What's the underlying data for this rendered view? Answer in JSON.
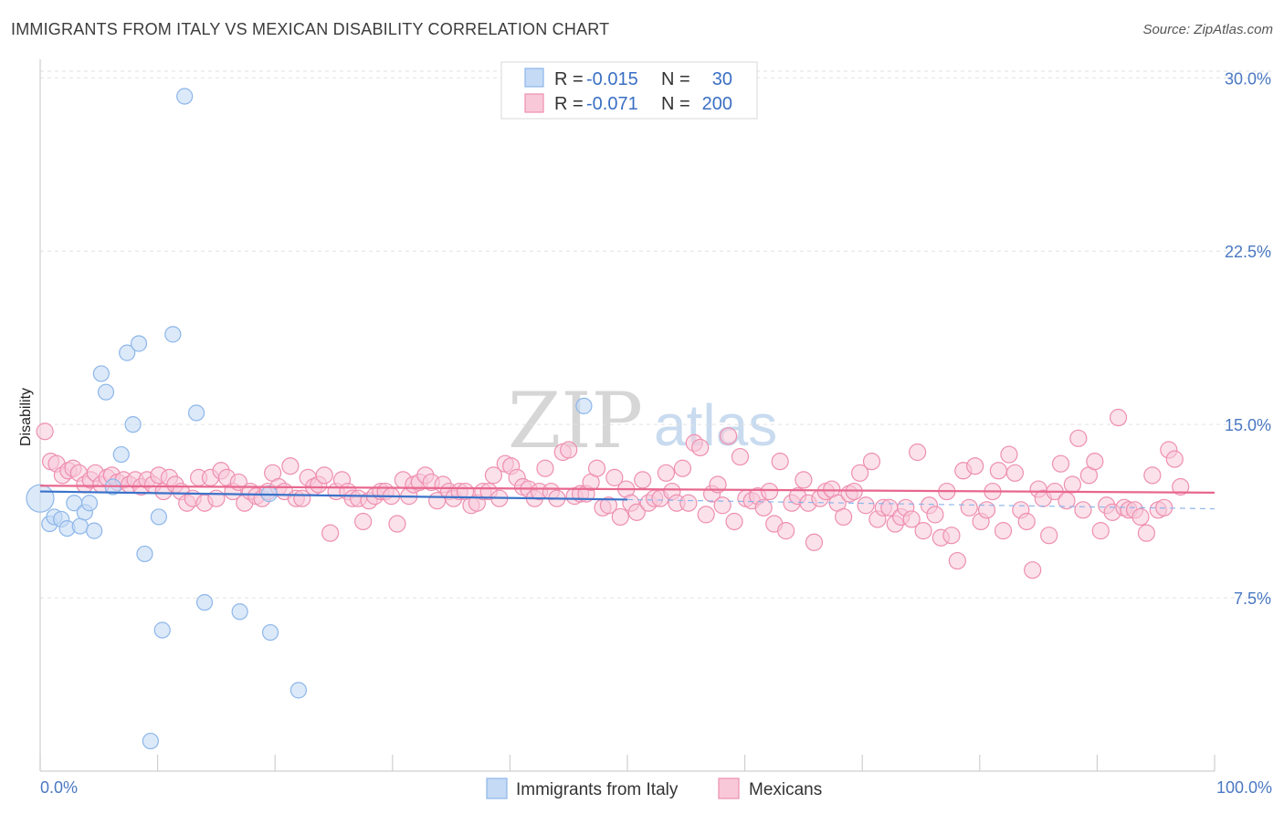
{
  "title": "IMMIGRANTS FROM ITALY VS MEXICAN DISABILITY CORRELATION CHART",
  "source": "Source: ZipAtlas.com",
  "watermark": {
    "zip": "ZIP",
    "atlas": "atlas"
  },
  "colors": {
    "blue": "#8db6ea",
    "blue_fill": "#c5daf5",
    "blue_line": "#3b73c9",
    "pink": "#ee8fb0",
    "pink_fill": "#f8c8d8",
    "pink_line": "#e8678f",
    "tick": "#4a78c2"
  },
  "stats": [
    {
      "r_label": "R =",
      "r_value": "-0.015",
      "n_label": "N =",
      "n_value": "30"
    },
    {
      "r_label": "R =",
      "r_value": "-0.071",
      "n_label": "N =",
      "n_value": "200"
    }
  ],
  "chart_data": {
    "type": "scatter",
    "ylabel": "Disability",
    "xlabel": "",
    "xlim": [
      0,
      100
    ],
    "ylim": [
      0,
      30.8
    ],
    "y_ticks": [
      7.5,
      15.0,
      22.5,
      30.0
    ],
    "y_tick_labels": [
      "7.5%",
      "15.0%",
      "22.5%",
      "30.0%"
    ],
    "x_tick_labels": [
      "0.0%",
      "100.0%"
    ],
    "legend_position": "bottom-center",
    "grid": true,
    "series": [
      {
        "name": "Immigrants from Italy",
        "points": [
          [
            0,
            11.8
          ],
          [
            0.8,
            10.7
          ],
          [
            1.2,
            11.0
          ],
          [
            1.8,
            10.9
          ],
          [
            2.3,
            10.5
          ],
          [
            2.9,
            11.6
          ],
          [
            3.4,
            10.6
          ],
          [
            3.8,
            11.2
          ],
          [
            4.2,
            11.6
          ],
          [
            4.6,
            10.4
          ],
          [
            5.2,
            17.2
          ],
          [
            5.6,
            16.4
          ],
          [
            6.2,
            12.3
          ],
          [
            6.9,
            13.7
          ],
          [
            7.4,
            18.1
          ],
          [
            7.9,
            15.0
          ],
          [
            8.4,
            18.5
          ],
          [
            8.9,
            9.4
          ],
          [
            9.4,
            1.3
          ],
          [
            10.1,
            11.0
          ],
          [
            10.4,
            6.1
          ],
          [
            11.3,
            18.9
          ],
          [
            12.3,
            29.2
          ],
          [
            13.3,
            15.5
          ],
          [
            14.0,
            7.3
          ],
          [
            17.0,
            6.9
          ],
          [
            19.5,
            12.0
          ],
          [
            19.6,
            6.0
          ],
          [
            22.0,
            3.5
          ],
          [
            46.3,
            15.8
          ]
        ]
      },
      {
        "name": "Mexicans",
        "points": [
          [
            0.4,
            14.7
          ],
          [
            0.9,
            13.4
          ],
          [
            1.4,
            13.3
          ],
          [
            1.9,
            12.8
          ],
          [
            2.4,
            13.0
          ],
          [
            2.8,
            13.1
          ],
          [
            3.3,
            12.9
          ],
          [
            3.8,
            12.4
          ],
          [
            4.3,
            12.6
          ],
          [
            4.7,
            12.9
          ],
          [
            5.2,
            12.4
          ],
          [
            5.7,
            12.7
          ],
          [
            6.1,
            12.8
          ],
          [
            6.6,
            12.5
          ],
          [
            7.1,
            12.6
          ],
          [
            7.6,
            12.4
          ],
          [
            8.1,
            12.6
          ],
          [
            8.6,
            12.3
          ],
          [
            9.1,
            12.6
          ],
          [
            9.6,
            12.4
          ],
          [
            10.1,
            12.8
          ],
          [
            10.5,
            12.1
          ],
          [
            11.0,
            12.7
          ],
          [
            11.5,
            12.4
          ],
          [
            12.0,
            12.1
          ],
          [
            12.5,
            11.6
          ],
          [
            13.0,
            11.8
          ],
          [
            13.5,
            12.7
          ],
          [
            14.0,
            11.6
          ],
          [
            14.5,
            12.7
          ],
          [
            15.0,
            11.8
          ],
          [
            15.4,
            13.0
          ],
          [
            15.9,
            12.7
          ],
          [
            16.4,
            12.1
          ],
          [
            16.9,
            12.5
          ],
          [
            17.4,
            11.6
          ],
          [
            17.9,
            12.1
          ],
          [
            18.4,
            11.9
          ],
          [
            18.9,
            11.8
          ],
          [
            19.4,
            12.1
          ],
          [
            19.8,
            12.9
          ],
          [
            20.3,
            12.3
          ],
          [
            20.8,
            12.1
          ],
          [
            21.3,
            13.2
          ],
          [
            21.8,
            11.8
          ],
          [
            22.3,
            11.8
          ],
          [
            22.8,
            12.7
          ],
          [
            23.3,
            12.3
          ],
          [
            23.7,
            12.4
          ],
          [
            24.2,
            12.8
          ],
          [
            24.7,
            10.3
          ],
          [
            25.2,
            12.1
          ],
          [
            25.7,
            12.6
          ],
          [
            26.2,
            12.1
          ],
          [
            26.6,
            11.8
          ],
          [
            27.1,
            11.8
          ],
          [
            27.5,
            10.8
          ],
          [
            28.0,
            11.7
          ],
          [
            28.5,
            11.9
          ],
          [
            29.0,
            12.1
          ],
          [
            29.4,
            12.1
          ],
          [
            29.9,
            11.9
          ],
          [
            30.4,
            10.7
          ],
          [
            30.9,
            12.6
          ],
          [
            31.4,
            11.9
          ],
          [
            31.8,
            12.4
          ],
          [
            32.3,
            12.5
          ],
          [
            32.8,
            12.8
          ],
          [
            33.3,
            12.5
          ],
          [
            33.8,
            11.7
          ],
          [
            34.3,
            12.4
          ],
          [
            34.8,
            12.1
          ],
          [
            35.2,
            11.8
          ],
          [
            35.7,
            12.1
          ],
          [
            36.2,
            12.1
          ],
          [
            36.7,
            11.5
          ],
          [
            37.2,
            11.6
          ],
          [
            37.7,
            12.1
          ],
          [
            38.2,
            12.1
          ],
          [
            38.6,
            12.8
          ],
          [
            39.1,
            11.8
          ],
          [
            39.6,
            13.3
          ],
          [
            40.1,
            13.2
          ],
          [
            40.6,
            12.7
          ],
          [
            41.1,
            12.3
          ],
          [
            41.6,
            12.2
          ],
          [
            42.1,
            11.8
          ],
          [
            42.5,
            12.1
          ],
          [
            43.0,
            13.1
          ],
          [
            43.5,
            12.1
          ],
          [
            44.0,
            11.8
          ],
          [
            44.5,
            13.8
          ],
          [
            45.0,
            13.9
          ],
          [
            45.5,
            11.9
          ],
          [
            46.0,
            12.0
          ],
          [
            46.5,
            12.0
          ],
          [
            46.9,
            12.5
          ],
          [
            47.4,
            13.1
          ],
          [
            47.9,
            11.4
          ],
          [
            48.4,
            11.5
          ],
          [
            48.9,
            12.7
          ],
          [
            49.4,
            11.0
          ],
          [
            49.9,
            12.2
          ],
          [
            50.3,
            11.6
          ],
          [
            50.8,
            11.2
          ],
          [
            51.3,
            12.6
          ],
          [
            51.8,
            11.6
          ],
          [
            52.3,
            11.8
          ],
          [
            52.8,
            11.8
          ],
          [
            53.3,
            12.9
          ],
          [
            53.8,
            12.1
          ],
          [
            54.2,
            11.6
          ],
          [
            54.7,
            13.1
          ],
          [
            55.2,
            11.6
          ],
          [
            55.7,
            14.2
          ],
          [
            56.2,
            14.0
          ],
          [
            56.7,
            11.1
          ],
          [
            57.2,
            12.0
          ],
          [
            57.7,
            12.4
          ],
          [
            58.1,
            11.5
          ],
          [
            58.6,
            14.5
          ],
          [
            59.1,
            10.8
          ],
          [
            59.6,
            13.6
          ],
          [
            60.1,
            11.8
          ],
          [
            60.6,
            11.7
          ],
          [
            61.1,
            11.9
          ],
          [
            61.6,
            11.4
          ],
          [
            62.1,
            12.1
          ],
          [
            62.5,
            10.7
          ],
          [
            63.0,
            13.4
          ],
          [
            63.5,
            10.4
          ],
          [
            64.0,
            11.6
          ],
          [
            64.5,
            11.9
          ],
          [
            65.0,
            12.6
          ],
          [
            65.4,
            11.6
          ],
          [
            65.9,
            9.9
          ],
          [
            66.4,
            11.8
          ],
          [
            66.9,
            12.1
          ],
          [
            67.4,
            12.2
          ],
          [
            67.9,
            11.6
          ],
          [
            68.4,
            11.0
          ],
          [
            68.9,
            12.0
          ],
          [
            69.3,
            12.1
          ],
          [
            69.8,
            12.9
          ],
          [
            70.3,
            11.5
          ],
          [
            70.8,
            13.4
          ],
          [
            71.3,
            10.9
          ],
          [
            71.8,
            11.4
          ],
          [
            72.3,
            11.4
          ],
          [
            72.8,
            10.7
          ],
          [
            73.3,
            11.0
          ],
          [
            73.7,
            11.4
          ],
          [
            74.2,
            10.9
          ],
          [
            74.7,
            13.8
          ],
          [
            75.2,
            10.4
          ],
          [
            75.7,
            11.5
          ],
          [
            76.2,
            11.1
          ],
          [
            76.7,
            10.1
          ],
          [
            77.2,
            12.1
          ],
          [
            77.6,
            10.2
          ],
          [
            78.1,
            9.1
          ],
          [
            78.6,
            13.0
          ],
          [
            79.1,
            11.4
          ],
          [
            79.6,
            13.2
          ],
          [
            80.1,
            10.8
          ],
          [
            80.6,
            11.3
          ],
          [
            81.1,
            12.1
          ],
          [
            81.6,
            13.0
          ],
          [
            82.0,
            10.4
          ],
          [
            82.5,
            13.7
          ],
          [
            83.0,
            12.9
          ],
          [
            83.5,
            11.3
          ],
          [
            84.0,
            10.8
          ],
          [
            84.5,
            8.7
          ],
          [
            85.0,
            12.2
          ],
          [
            85.4,
            11.8
          ],
          [
            85.9,
            10.2
          ],
          [
            86.4,
            12.1
          ],
          [
            86.9,
            13.3
          ],
          [
            87.4,
            11.7
          ],
          [
            87.9,
            12.4
          ],
          [
            88.4,
            14.4
          ],
          [
            88.8,
            11.3
          ],
          [
            89.3,
            12.8
          ],
          [
            89.8,
            13.4
          ],
          [
            90.3,
            10.4
          ],
          [
            90.8,
            11.5
          ],
          [
            91.3,
            11.2
          ],
          [
            91.8,
            15.3
          ],
          [
            92.3,
            11.4
          ],
          [
            92.7,
            11.3
          ],
          [
            93.2,
            11.3
          ],
          [
            93.7,
            11.0
          ],
          [
            94.2,
            10.3
          ],
          [
            94.7,
            12.8
          ],
          [
            95.2,
            11.3
          ],
          [
            95.7,
            11.4
          ],
          [
            96.1,
            13.9
          ],
          [
            96.6,
            13.5
          ],
          [
            97.1,
            12.3
          ]
        ]
      }
    ],
    "trend_lines": [
      {
        "series": "Immigrants from Italy",
        "x": [
          0,
          50
        ],
        "y": [
          12.1,
          11.75
        ],
        "dashed_to": 100,
        "dashed_end_y": 11.35
      },
      {
        "series": "Mexicans",
        "x": [
          0,
          100
        ],
        "y": [
          12.35,
          12.05
        ]
      }
    ]
  }
}
